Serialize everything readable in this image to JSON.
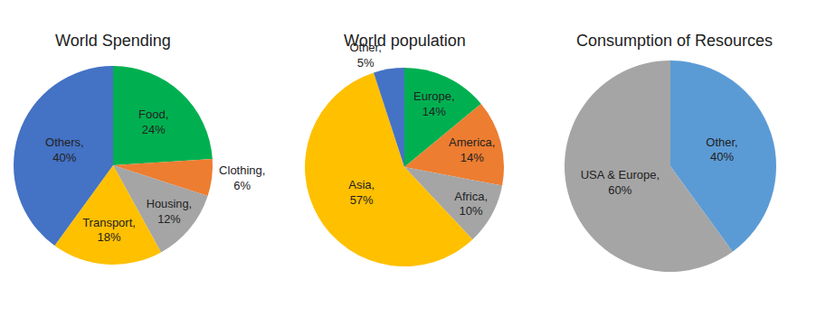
{
  "chart_data": [
    {
      "type": "pie",
      "title": "World Spending",
      "categories": [
        "Food",
        "Clothing",
        "Housing",
        "Transport",
        "Others"
      ],
      "values": [
        24,
        6,
        12,
        18,
        40
      ],
      "value_labels": [
        "Food, 24%",
        "Clothing, 6%",
        "Housing, 12%",
        "Transport, 18%",
        "Others, 40%"
      ],
      "colors": [
        "#00b050",
        "#ed7d31",
        "#a5a5a5",
        "#ffc000",
        "#4472c4"
      ],
      "data_labels": true
    },
    {
      "type": "pie",
      "title": "World population",
      "categories": [
        "Europe",
        "America",
        "Africa",
        "Asia",
        "Other"
      ],
      "values": [
        14,
        14,
        10,
        57,
        5
      ],
      "value_labels": [
        "Europe, 14%",
        "America, 14%",
        "Africa, 10%",
        "Asia, 57%",
        "Other, 5%"
      ],
      "colors": [
        "#00b050",
        "#ed7d31",
        "#a5a5a5",
        "#ffc000",
        "#4472c4"
      ],
      "data_labels": true
    },
    {
      "type": "pie",
      "title": "Consumption of Resources",
      "categories": [
        "Other",
        "USA & Europe"
      ],
      "values": [
        40,
        60
      ],
      "value_labels": [
        "Other, 40%",
        "USA & Europe, 60%"
      ],
      "colors": [
        "#5b9bd5",
        "#a5a5a5"
      ],
      "data_labels": true
    }
  ]
}
